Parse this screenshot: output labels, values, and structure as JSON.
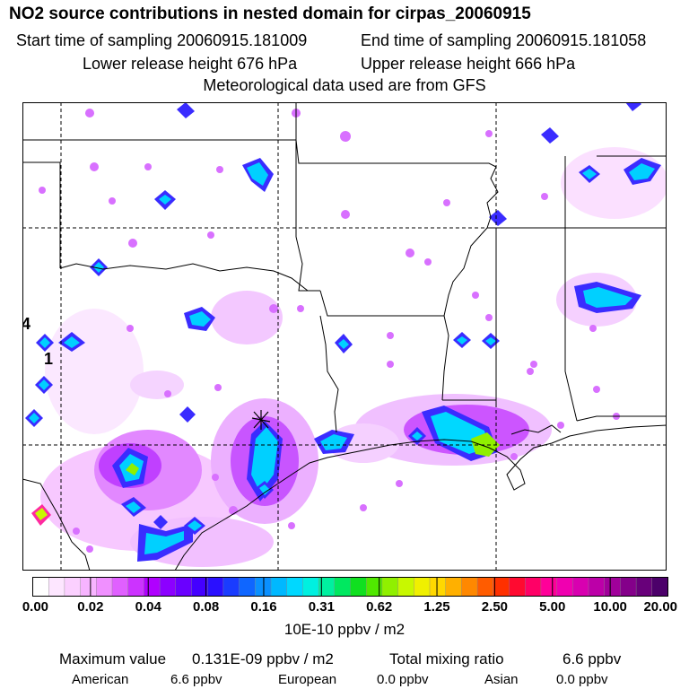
{
  "header": {
    "title": "NO2 source contributions in nested domain for cirpas_20060915",
    "start_time": "Start time of sampling 20060915.181009",
    "end_time": "End time of sampling 20060915.181058",
    "lower_height": "Lower release height  676 hPa",
    "upper_height": "Upper release height  666 hPa",
    "met_data": "Meteorological data used are from GFS"
  },
  "map": {
    "side_labels": [
      "4",
      "1"
    ],
    "receptor_marker": "star"
  },
  "colorbar": {
    "tick_labels": [
      "0.00",
      "0.02",
      "0.04",
      "0.08",
      "0.16",
      "0.31",
      "0.62",
      "1.25",
      "2.50",
      "5.00",
      "10.00",
      "20.00"
    ],
    "units": "10E-10 ppbv / m2",
    "colors": [
      "#ffffff",
      "#fde6ff",
      "#fbd0ff",
      "#f7b4ff",
      "#f090ff",
      "#e060ff",
      "#cc33ff",
      "#b000ff",
      "#8c00ff",
      "#6a00ff",
      "#4400ff",
      "#2a10ff",
      "#1a3cff",
      "#0f66ff",
      "#0a90ff",
      "#00b8ff",
      "#00d8ff",
      "#00f0e0",
      "#00f0a0",
      "#00e860",
      "#10e020",
      "#50e800",
      "#90f000",
      "#c8f800",
      "#f0f000",
      "#ffd800",
      "#ffb000",
      "#ff8800",
      "#ff5c00",
      "#ff3000",
      "#ff0a30",
      "#ff0066",
      "#ff0099",
      "#f000b0",
      "#d800b0",
      "#bc00a8",
      "#a0009a",
      "#84008a",
      "#68007a",
      "#4c006a"
    ]
  },
  "summary": {
    "max_label": "Maximum value",
    "max_value": "0.131E-09 ppbv / m2",
    "total_label": "Total mixing ratio",
    "total_value": "6.6 ppbv",
    "regions": [
      {
        "name": "American",
        "value": "6.6 ppbv"
      },
      {
        "name": "European",
        "value": "0.0 ppbv"
      },
      {
        "name": "Asian",
        "value": "0.0 ppbv"
      }
    ]
  }
}
